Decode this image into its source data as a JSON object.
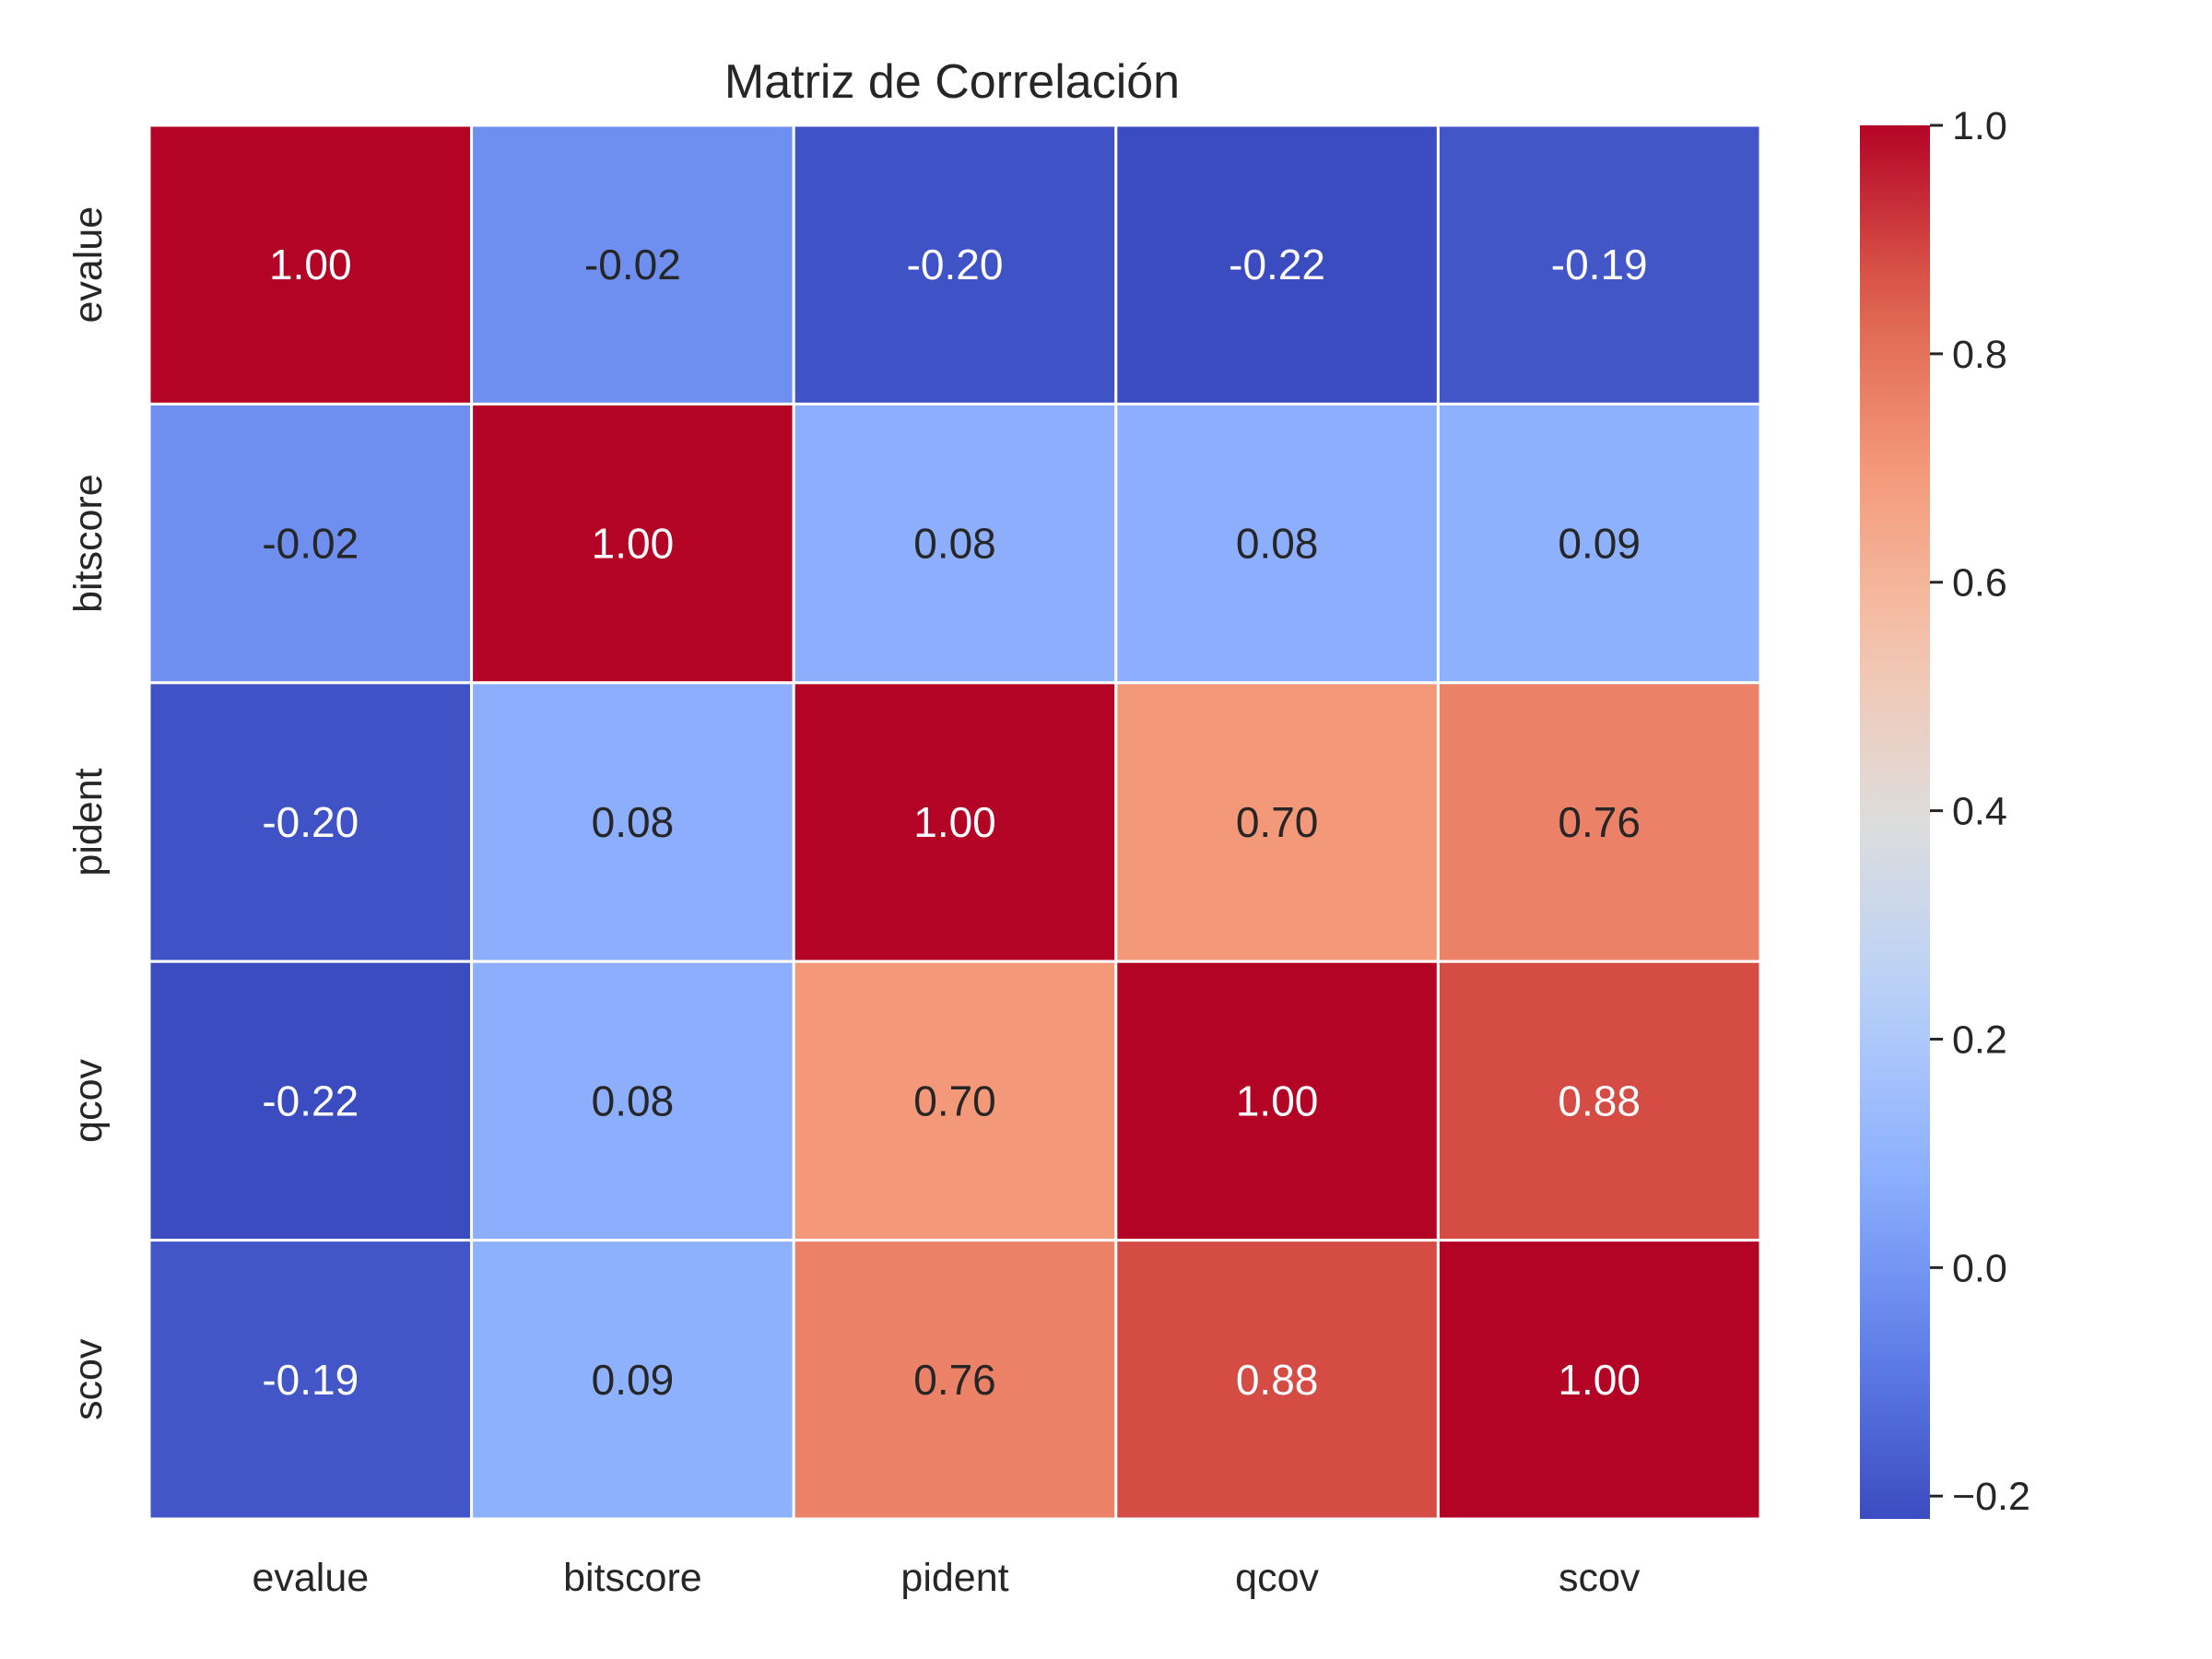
{
  "chart_data": {
    "type": "heatmap",
    "title": "Matriz de Correlación",
    "xlabel": "",
    "ylabel": "",
    "x_categories": [
      "evalue",
      "bitscore",
      "pident",
      "qcov",
      "scov"
    ],
    "y_categories": [
      "evalue",
      "bitscore",
      "pident",
      "qcov",
      "scov"
    ],
    "values": [
      [
        1.0,
        -0.02,
        -0.2,
        -0.22,
        -0.19
      ],
      [
        -0.02,
        1.0,
        0.08,
        0.08,
        0.09
      ],
      [
        -0.2,
        0.08,
        1.0,
        0.7,
        0.76
      ],
      [
        -0.22,
        0.08,
        0.7,
        1.0,
        0.88
      ],
      [
        -0.19,
        0.09,
        0.76,
        0.88,
        1.0
      ]
    ],
    "value_labels": [
      [
        "1.00",
        "-0.02",
        "-0.20",
        "-0.22",
        "-0.19"
      ],
      [
        "-0.02",
        "1.00",
        "0.08",
        "0.08",
        "0.09"
      ],
      [
        "-0.20",
        "0.08",
        "1.00",
        "0.70",
        "0.76"
      ],
      [
        "-0.22",
        "0.08",
        "0.70",
        "1.00",
        "0.88"
      ],
      [
        "-0.19",
        "0.09",
        "0.76",
        "0.88",
        "1.00"
      ]
    ],
    "colormap": "coolwarm",
    "colorbar": {
      "range": [
        -0.22,
        1.0
      ],
      "ticks": [
        -0.2,
        0.0,
        0.2,
        0.4,
        0.6,
        0.8,
        1.0
      ],
      "tick_labels": [
        "−0.2",
        "0.0",
        "0.2",
        "0.4",
        "0.6",
        "0.8",
        "1.0"
      ]
    },
    "grid": false,
    "legend": "colorbar-right"
  }
}
